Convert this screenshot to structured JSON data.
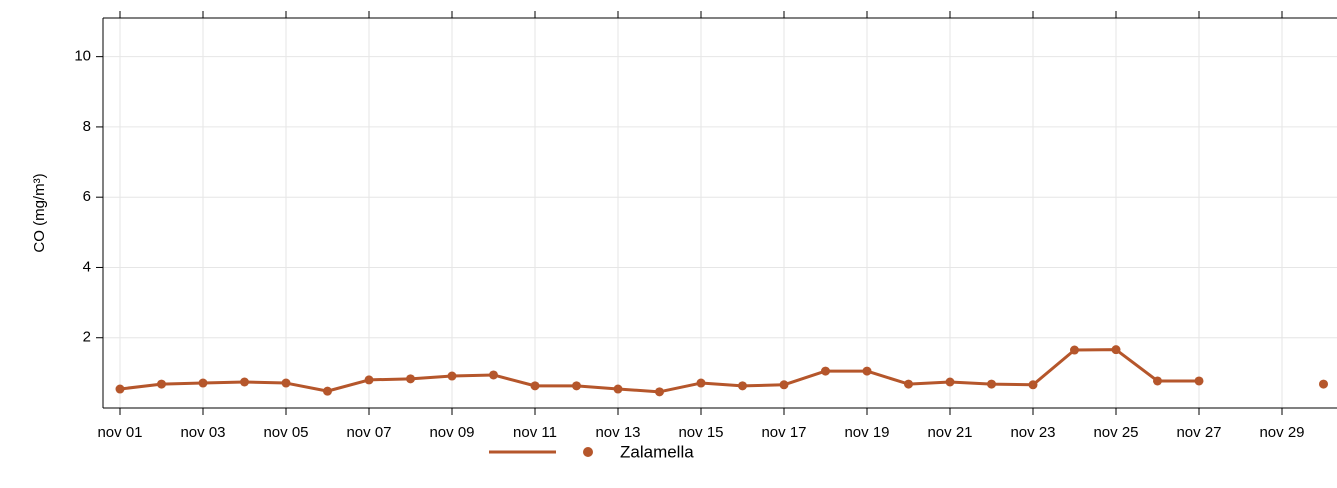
{
  "chart_data": {
    "type": "line",
    "categories": [
      "nov 01",
      null,
      "nov 03",
      null,
      "nov 05",
      null,
      "nov 07",
      null,
      "nov 09",
      null,
      "nov 11",
      null,
      "nov 13",
      null,
      "nov 15",
      null,
      "nov 17",
      null,
      "nov 19",
      null,
      "nov 21",
      null,
      "nov 23",
      null,
      "nov 25",
      null,
      "nov 27",
      null,
      "nov 29",
      null
    ],
    "series": [
      {
        "name": "Zalamella",
        "color": "#b5562b",
        "values": [
          0.54,
          0.68,
          0.71,
          0.74,
          0.71,
          0.48,
          0.8,
          0.83,
          0.91,
          0.94,
          0.63,
          0.63,
          0.54,
          0.46,
          0.71,
          0.63,
          0.66,
          1.05,
          1.05,
          0.68,
          0.74,
          0.68,
          0.66,
          1.65,
          1.66,
          0.77,
          0.77,
          null,
          null,
          0.68
        ]
      }
    ],
    "y_label": "CO (mg/m³)",
    "ylim": [
      0,
      11.1
    ],
    "yticks": [
      2,
      4,
      6,
      8,
      10
    ],
    "grid": true
  }
}
